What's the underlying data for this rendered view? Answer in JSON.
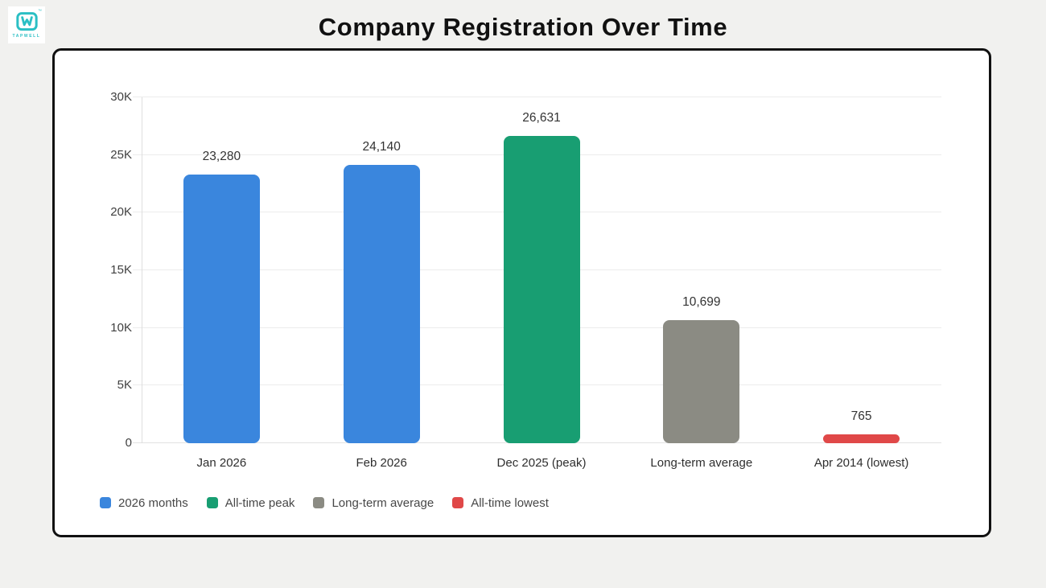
{
  "logo": {
    "brand": "TAPWELL",
    "trademark": "™",
    "color": "#2bbfc4"
  },
  "chart_data": {
    "type": "bar",
    "title": "Company Registration Over Time",
    "categories": [
      "Jan 2026",
      "Feb 2026",
      "Dec 2025 (peak)",
      "Long-term average",
      "Apr 2014 (lowest)"
    ],
    "values": [
      23280,
      24140,
      26631,
      10699,
      765
    ],
    "value_labels": [
      "23,280",
      "24,140",
      "26,631",
      "10,699",
      "765"
    ],
    "bar_colors": [
      "#3a86dd",
      "#3a86dd",
      "#189e72",
      "#8b8b83",
      "#e04848"
    ],
    "xlabel": "",
    "ylabel": "",
    "ylim": [
      0,
      30000
    ],
    "ytick_interval": 5000,
    "ytick_labels": [
      "0",
      "5K",
      "10K",
      "15K",
      "20K",
      "25K",
      "30K"
    ],
    "grid": "horizontal",
    "legend_position": "bottom-left",
    "legend": [
      {
        "label": "2026 months",
        "color": "#3a86dd"
      },
      {
        "label": "All-time peak",
        "color": "#189e72"
      },
      {
        "label": "Long-term average",
        "color": "#8b8b83"
      },
      {
        "label": "All-time lowest",
        "color": "#e04848"
      }
    ],
    "colors": {
      "page_background": "#f1f1ef",
      "card_background": "#ffffff",
      "card_border": "#111111",
      "gridline": "#ececec"
    }
  }
}
